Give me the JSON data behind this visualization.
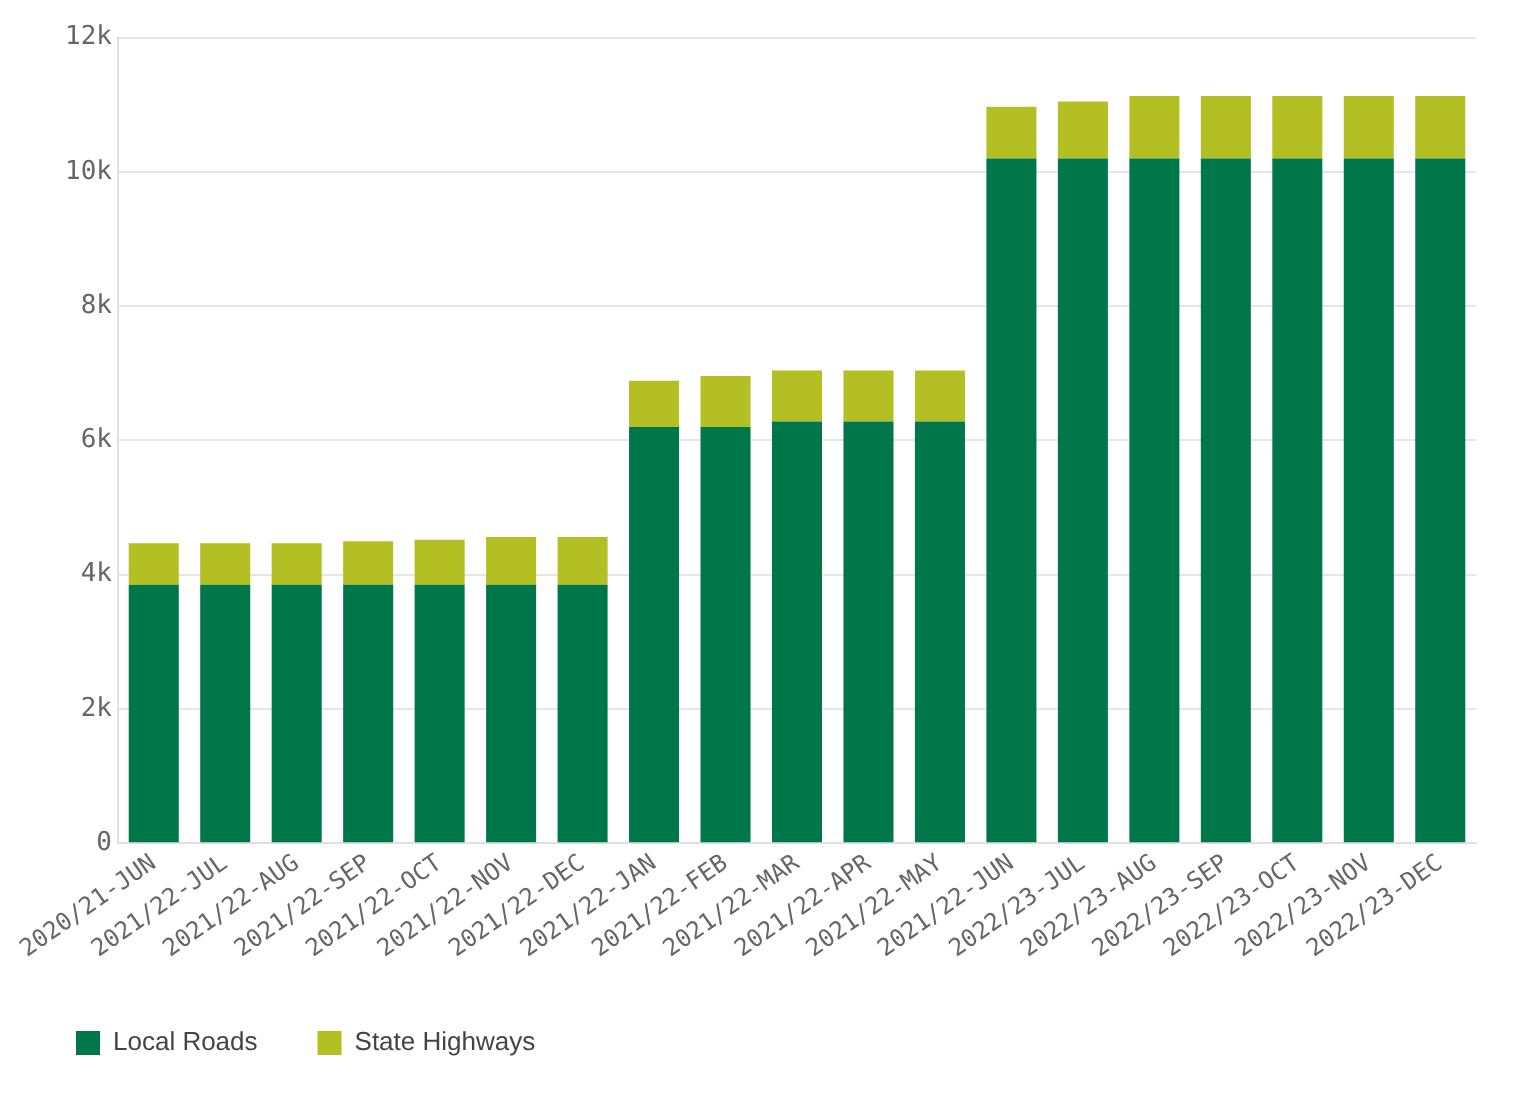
{
  "chart_data": {
    "type": "bar",
    "stacked": true,
    "categories": [
      "2020/21-JUN",
      "2021/22-JUL",
      "2021/22-AUG",
      "2021/22-SEP",
      "2021/22-OCT",
      "2021/22-NOV",
      "2021/22-DEC",
      "2021/22-JAN",
      "2021/22-FEB",
      "2021/22-MAR",
      "2021/22-APR",
      "2021/22-MAY",
      "2021/22-JUN",
      "2022/23-JUL",
      "2022/23-AUG",
      "2022/23-SEP",
      "2022/23-OCT",
      "2022/23-NOV",
      "2022/23-DEC"
    ],
    "series": [
      {
        "name": "Local Roads",
        "color": "#00774a",
        "values": [
          3850,
          3850,
          3850,
          3850,
          3850,
          3850,
          3850,
          6200,
          6200,
          6280,
          6280,
          6280,
          10200,
          10200,
          10200,
          10200,
          10200,
          10200,
          10200
        ]
      },
      {
        "name": "State Highways",
        "color": "#b3bf22",
        "values": [
          620,
          620,
          620,
          650,
          670,
          710,
          710,
          690,
          760,
          760,
          760,
          760,
          770,
          850,
          930,
          930,
          930,
          930,
          930
        ]
      }
    ],
    "ylim": [
      0,
      12000
    ],
    "yticks": [
      {
        "value": 0,
        "label": "0"
      },
      {
        "value": 2000,
        "label": "2k"
      },
      {
        "value": 4000,
        "label": "4k"
      },
      {
        "value": 6000,
        "label": "6k"
      },
      {
        "value": 8000,
        "label": "8k"
      },
      {
        "value": 10000,
        "label": "10k"
      },
      {
        "value": 12000,
        "label": "12k"
      }
    ],
    "grid": "y",
    "legend": "bottom left"
  }
}
